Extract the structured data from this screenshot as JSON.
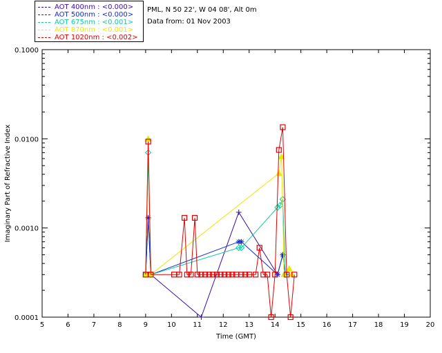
{
  "info": {
    "location": "PML, N 50 22', W 04 08', Alt 0m",
    "date": "Data from: 01 Nov 2003"
  },
  "legend": [
    {
      "label": "AOT  400nm : <0.000>",
      "color": "#3b0aa8"
    },
    {
      "label": "AOT  500nm : <0.000>",
      "color": "#0a2bd6"
    },
    {
      "label": "AOT  675nm : <0.001>",
      "color": "#12c9a0"
    },
    {
      "label": "AOT  870nm : <0.001>",
      "color": "#e8e800"
    },
    {
      "label": "AOT 1020nm : <0.002>",
      "color": "#e00000"
    }
  ],
  "chart_data": {
    "type": "line",
    "xlabel": "Time (GMT)",
    "ylabel": "Imaginary Part of Refractive Index",
    "xlim": [
      5,
      20
    ],
    "ylim": [
      0.0001,
      0.1
    ],
    "yscale": "log",
    "xticks": [
      "5",
      "6",
      "7",
      "8",
      "9",
      "10",
      "11",
      "12",
      "13",
      "14",
      "15",
      "16",
      "17",
      "18",
      "19",
      "20"
    ],
    "yticks": [
      "0.0001",
      "0.0010",
      "0.0100",
      "0.1000"
    ],
    "series": [
      {
        "name": "AOT  400nm : <0.000>",
        "color": "#3b0aa8",
        "marker": "plus",
        "x": [
          9.0,
          9.1,
          9.2,
          11.15,
          12.6,
          14.1,
          14.3
        ],
        "y": [
          0.0003,
          0.0013,
          0.0003,
          0.0001,
          0.0015,
          0.0003,
          0.0005
        ]
      },
      {
        "name": "AOT  500nm : <0.000>",
        "color": "#0a2bd6",
        "marker": "star",
        "x": [
          9.0,
          9.1,
          9.2,
          12.6,
          12.7,
          14.1,
          14.3,
          14.4
        ],
        "y": [
          0.0003,
          0.0013,
          0.0003,
          0.0007,
          0.0007,
          0.0003,
          0.0005,
          0.0003
        ]
      },
      {
        "name": "AOT  675nm : <0.001>",
        "color": "#12c9a0",
        "marker": "diamond",
        "x": [
          9.0,
          9.1,
          9.2,
          12.6,
          12.7,
          14.1,
          14.2,
          14.3,
          14.4
        ],
        "y": [
          0.0003,
          0.007,
          0.0003,
          0.0006,
          0.0006,
          0.0017,
          0.0018,
          0.0021,
          0.0003
        ]
      },
      {
        "name": "AOT  870nm : <0.001>",
        "color": "#e8e800",
        "marker": "triangle",
        "x": [
          9.0,
          9.1,
          9.2,
          14.15,
          14.25,
          14.35,
          14.55,
          14.65
        ],
        "y": [
          0.0003,
          0.01,
          0.0003,
          0.0041,
          0.0063,
          0.0003,
          0.00035,
          0.0003
        ]
      },
      {
        "name": "AOT 1020nm : <0.002>",
        "color": "#e00000",
        "marker": "square",
        "x": [
          9.0,
          9.1,
          9.2,
          10.1,
          10.3,
          10.5,
          10.6,
          10.75,
          10.9,
          11.0,
          11.15,
          11.3,
          11.45,
          11.6,
          11.75,
          11.9,
          12.05,
          12.2,
          12.35,
          12.5,
          12.7,
          12.85,
          13.0,
          13.25,
          13.4,
          13.55,
          13.7,
          13.85,
          14.0,
          14.15,
          14.3,
          14.45,
          14.6,
          14.75
        ],
        "y": [
          0.0003,
          0.0093,
          0.0003,
          0.0003,
          0.0003,
          0.0013,
          0.0003,
          0.0003,
          0.0013,
          0.0003,
          0.0003,
          0.0003,
          0.0003,
          0.0003,
          0.0003,
          0.0003,
          0.0003,
          0.0003,
          0.0003,
          0.0003,
          0.0003,
          0.0003,
          0.0003,
          0.0003,
          0.0006,
          0.0003,
          0.0003,
          0.0001,
          0.0003,
          0.0075,
          0.0135,
          0.0003,
          0.0001,
          0.0003
        ]
      }
    ]
  }
}
